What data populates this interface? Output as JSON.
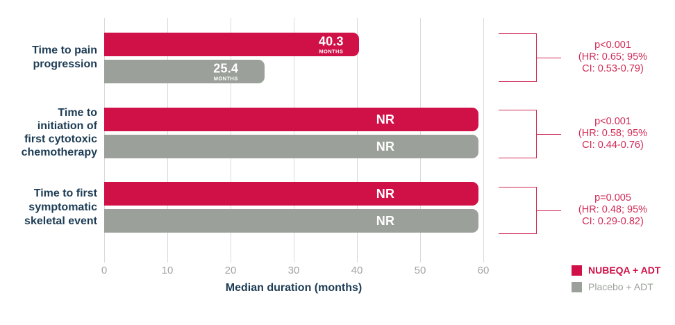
{
  "chart_data": {
    "type": "bar",
    "orientation": "horizontal",
    "xlabel": "Median duration (months)",
    "xlim": [
      0,
      60
    ],
    "xticks": [
      "0",
      "10",
      "20",
      "30",
      "40",
      "50",
      "60"
    ],
    "legend": [
      {
        "label": "NUBEQA + ADT",
        "color": "#d01147"
      },
      {
        "label": "Placebo + ADT",
        "color": "#9ba19a"
      }
    ],
    "groups": [
      {
        "category": "Time to pain\nprogression",
        "bars": [
          {
            "series": "NUBEQA + ADT",
            "value": 40.3,
            "display": "40.3",
            "unit": "MONTHS",
            "plot_months": 40.3
          },
          {
            "series": "Placebo + ADT",
            "value": 25.4,
            "display": "25.4",
            "unit": "MONTHS",
            "plot_months": 25.4
          }
        ],
        "stat": "p<0.001\n(HR: 0.65; 95%\nCI: 0.53-0.79)"
      },
      {
        "category": "Time to\ninitiation of\nfirst cytotoxic\nchemotherapy",
        "bars": [
          {
            "series": "NUBEQA + ADT",
            "value": "NR",
            "display": "NR",
            "unit": "",
            "plot_months": 59.2
          },
          {
            "series": "Placebo + ADT",
            "value": "NR",
            "display": "NR",
            "unit": "",
            "plot_months": 59.2
          }
        ],
        "stat": "p<0.001\n(HR: 0.58; 95%\nCI: 0.44-0.76)"
      },
      {
        "category": "Time to first\nsymptomatic\nskeletal event",
        "bars": [
          {
            "series": "NUBEQA + ADT",
            "value": "NR",
            "display": "NR",
            "unit": "",
            "plot_months": 59.2
          },
          {
            "series": "Placebo + ADT",
            "value": "NR",
            "display": "NR",
            "unit": "",
            "plot_months": 59.2
          }
        ],
        "stat": "p=0.005\n(HR: 0.48; 95%\nCI: 0.29-0.82)"
      }
    ]
  },
  "colors": {
    "nubeqa": "#d01147",
    "placebo": "#9ba19a",
    "navy": "#1d3c54",
    "stat": "#d02a55",
    "gridline": "#d9d9d9",
    "tick": "#a3a3a3"
  }
}
